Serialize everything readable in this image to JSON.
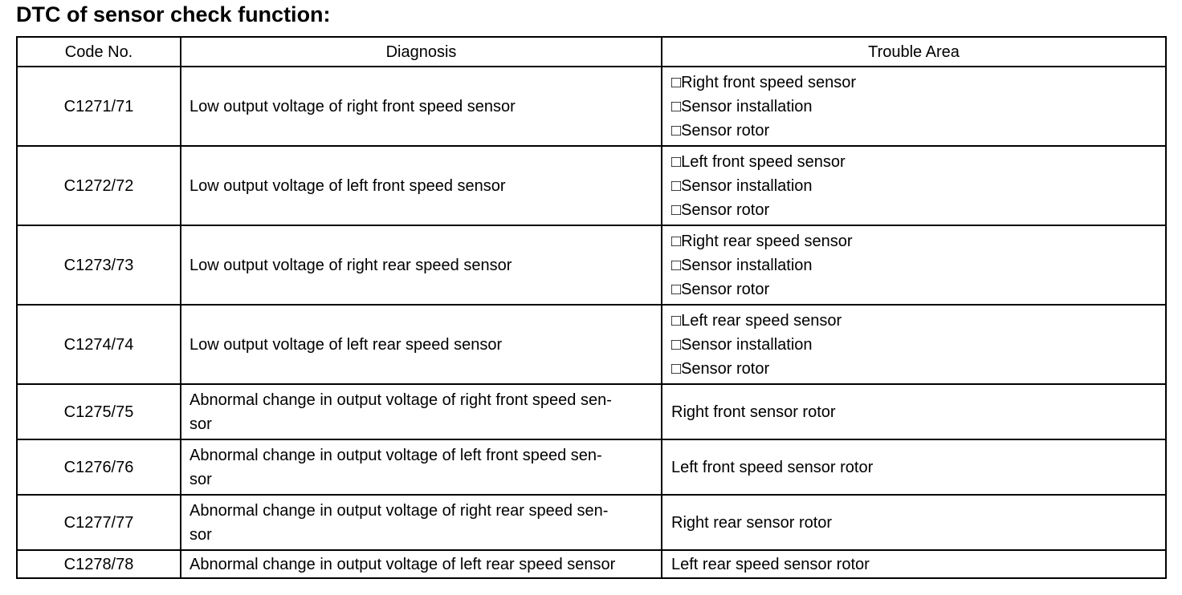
{
  "header": {
    "title": "DTC of sensor check function:"
  },
  "table": {
    "columns": [
      "Code No.",
      "Diagnosis",
      "Trouble Area"
    ],
    "rows": [
      {
        "code": "C1271/71",
        "diagnosis": [
          "Low output voltage of right front speed sensor"
        ],
        "trouble": [
          "□Right front speed sensor",
          "□Sensor installation",
          "□Sensor rotor"
        ]
      },
      {
        "code": "C1272/72",
        "diagnosis": [
          "Low output voltage of left front speed sensor"
        ],
        "trouble": [
          "□Left front speed sensor",
          "□Sensor installation",
          "□Sensor rotor"
        ]
      },
      {
        "code": "C1273/73",
        "diagnosis": [
          "Low output voltage of right rear speed sensor"
        ],
        "trouble": [
          "□Right rear speed sensor",
          "□Sensor installation",
          "□Sensor rotor"
        ]
      },
      {
        "code": "C1274/74",
        "diagnosis": [
          "Low output voltage of left rear speed sensor"
        ],
        "trouble": [
          "□Left rear speed sensor",
          "□Sensor installation",
          "□Sensor rotor"
        ]
      },
      {
        "code": "C1275/75",
        "diagnosis": [
          "Abnormal change in output voltage of right front speed sen-",
          "sor"
        ],
        "trouble": [
          "Right front sensor rotor"
        ]
      },
      {
        "code": "C1276/76",
        "diagnosis": [
          "Abnormal change in output voltage of left front speed sen-",
          "sor"
        ],
        "trouble": [
          "Left front speed sensor rotor"
        ]
      },
      {
        "code": "C1277/77",
        "diagnosis": [
          "Abnormal change in output voltage of right rear speed sen-",
          "sor"
        ],
        "trouble": [
          "Right rear sensor rotor"
        ]
      },
      {
        "code": "C1278/78",
        "diagnosis": [
          "Abnormal change in output voltage of left rear speed sensor"
        ],
        "trouble": [
          "Left rear speed sensor rotor"
        ]
      }
    ]
  }
}
